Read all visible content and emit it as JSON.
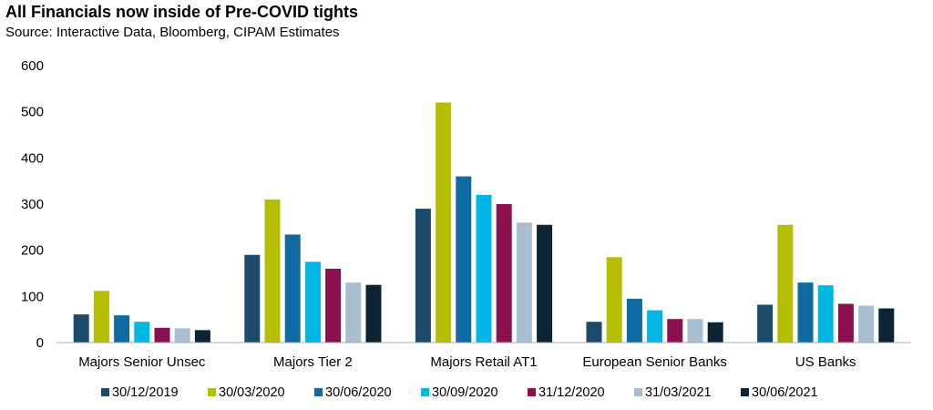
{
  "title": "All Financials now inside of Pre-COVID tights",
  "subtitle": "Source: Interactive Data, Bloomberg, CIPAM Estimates",
  "colors": [
    "#1b4a6b",
    "#b5be00",
    "#0e6aa0",
    "#00b6e5",
    "#8a104f",
    "#a7bfd1",
    "#0a2436"
  ],
  "chart_data": {
    "type": "bar",
    "categories": [
      "Majors Senior Unsec",
      "Majors Tier 2",
      "Majors Retail AT1",
      "European Senior Banks",
      "US Banks"
    ],
    "series": [
      {
        "name": "30/12/2019",
        "values": [
          61,
          190,
          290,
          45,
          82
        ]
      },
      {
        "name": "30/03/2020",
        "values": [
          112,
          310,
          520,
          185,
          255
        ]
      },
      {
        "name": "30/06/2020",
        "values": [
          59,
          234,
          360,
          95,
          130
        ]
      },
      {
        "name": "30/09/2020",
        "values": [
          45,
          175,
          320,
          70,
          124
        ]
      },
      {
        "name": "31/12/2020",
        "values": [
          32,
          160,
          300,
          51,
          84
        ]
      },
      {
        "name": "31/03/2021",
        "values": [
          31,
          130,
          260,
          51,
          80
        ]
      },
      {
        "name": "30/06/2021",
        "values": [
          27,
          125,
          255,
          44,
          74
        ]
      }
    ],
    "yticks": [
      0,
      100,
      200,
      300,
      400,
      500,
      600
    ],
    "ylim": [
      0,
      600
    ],
    "grid": false,
    "legend": "bottom"
  }
}
